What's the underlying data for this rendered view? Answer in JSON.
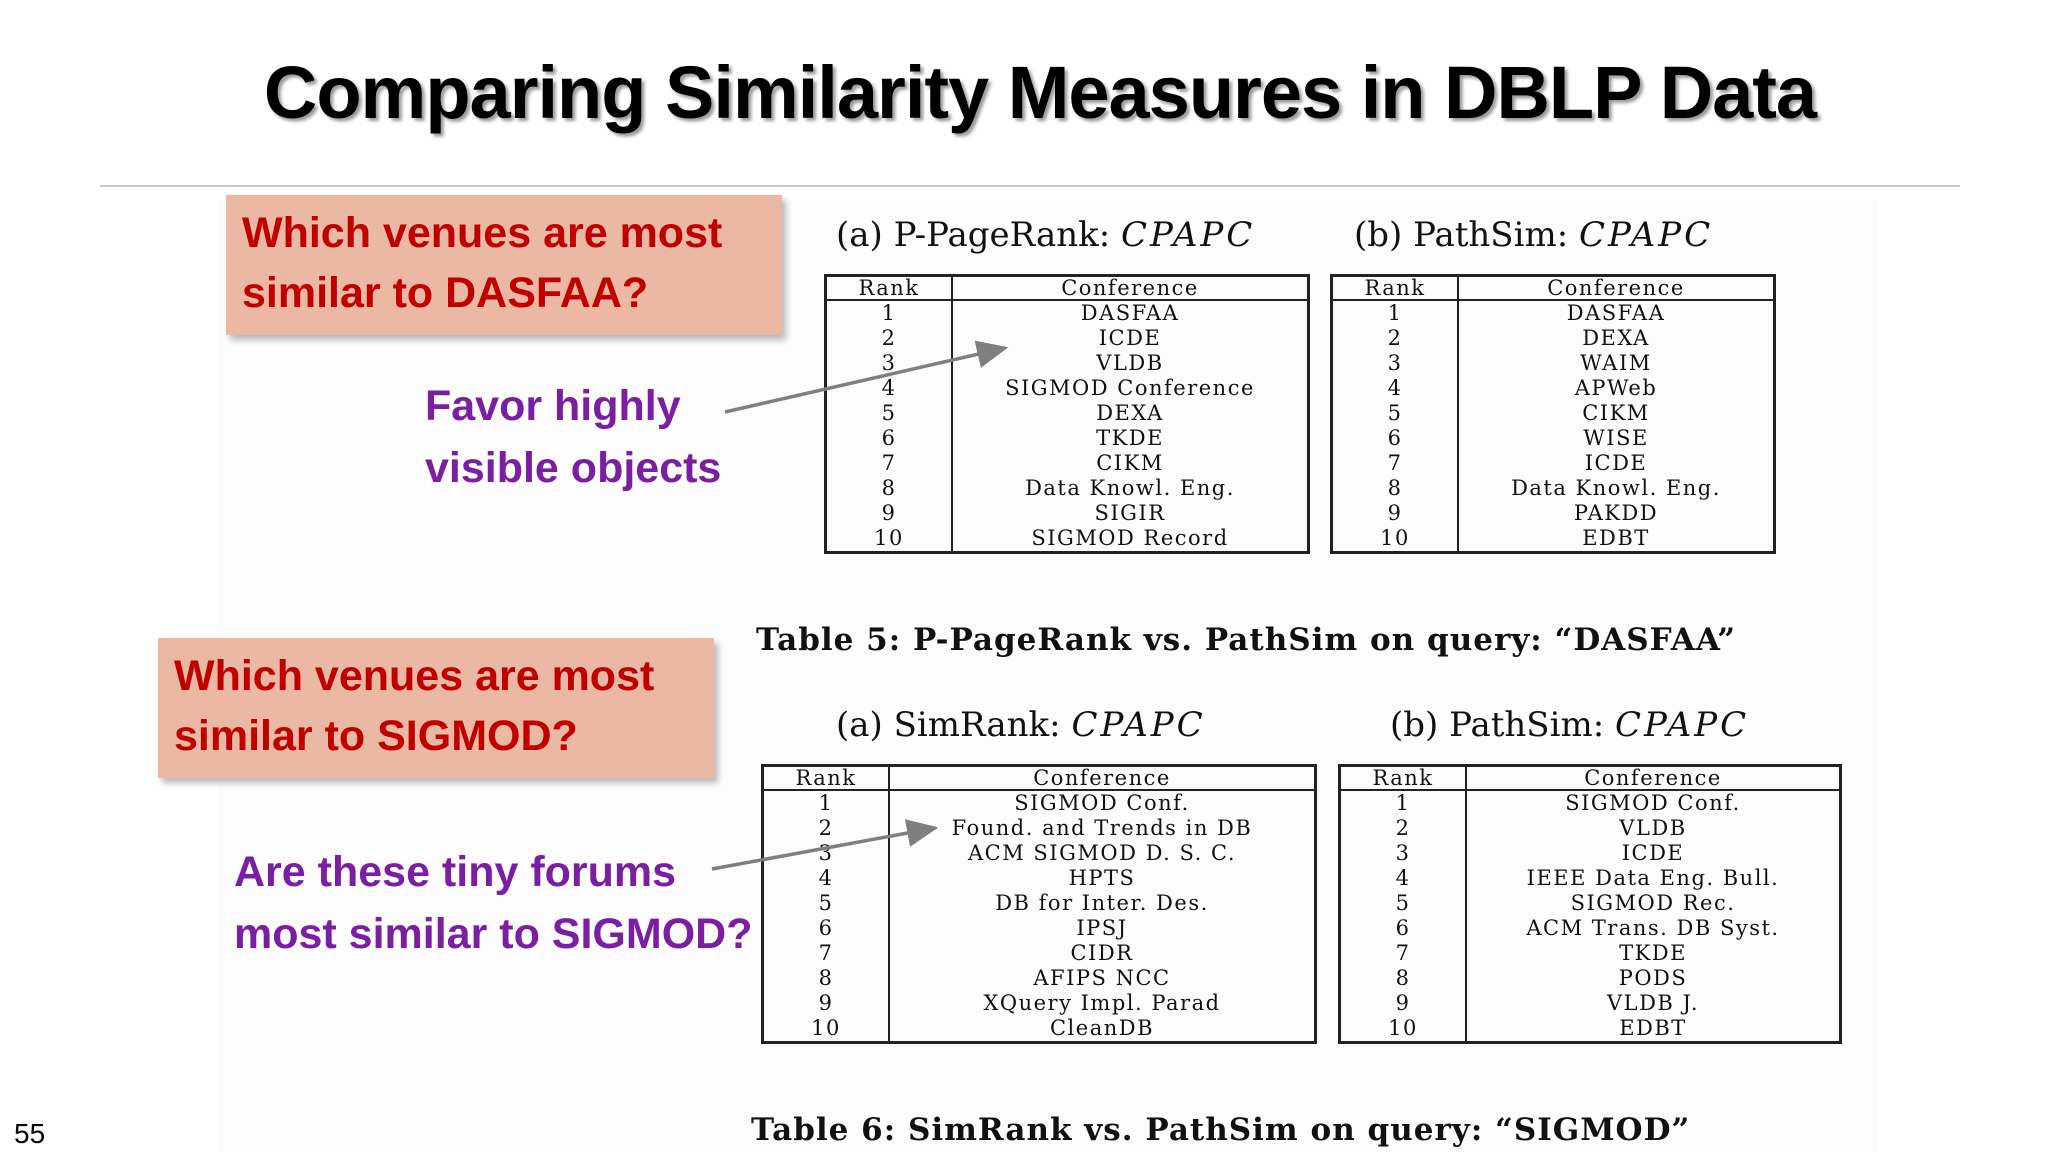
{
  "slide": {
    "title": "Comparing Similarity Measures in DBLP Data",
    "number": "55"
  },
  "callouts": [
    {
      "lines": [
        "Which venues are most",
        "similar to DASFAA?"
      ]
    },
    {
      "lines": [
        "Which venues are most",
        "similar to SIGMOD?"
      ]
    }
  ],
  "notes": [
    {
      "lines": [
        "Favor highly",
        "visible objects"
      ]
    },
    {
      "lines": [
        "Are these tiny forums",
        "most similar to SIGMOD?"
      ]
    }
  ],
  "table5": {
    "caption": "Table 5:  P-PageRank vs. PathSim on query:  “DASFAA”",
    "sub_a": {
      "prefix": "(a) P-PageRank: ",
      "path": "CPAPC"
    },
    "sub_b": {
      "prefix": "(b) PathSim: ",
      "path": "CPAPC"
    },
    "headers": [
      "Rank",
      "Conference"
    ],
    "a_rows": [
      "DASFAA",
      "ICDE",
      "VLDB",
      "SIGMOD Conference",
      "DEXA",
      "TKDE",
      "CIKM",
      "Data Knowl. Eng.",
      "SIGIR",
      "SIGMOD Record"
    ],
    "b_rows": [
      "DASFAA",
      "DEXA",
      "WAIM",
      "APWeb",
      "CIKM",
      "WISE",
      "ICDE",
      "Data Knowl. Eng.",
      "PAKDD",
      "EDBT"
    ]
  },
  "table6": {
    "caption": "Table 6:  SimRank vs. PathSim on query:  “SIGMOD”",
    "sub_a": {
      "prefix": "(a) SimRank: ",
      "path": "CPAPC"
    },
    "sub_b": {
      "prefix": "(b) PathSim: ",
      "path": "CPAPC"
    },
    "headers": [
      "Rank",
      "Conference"
    ],
    "a_rows": [
      "SIGMOD Conf.",
      "Found. and Trends in DB",
      "ACM SIGMOD D. S. C.",
      "HPTS",
      "DB for Inter. Des.",
      "IPSJ",
      "CIDR",
      "AFIPS NCC",
      "XQuery Impl. Parad",
      "CleanDB"
    ],
    "b_rows": [
      "SIGMOD Conf.",
      "VLDB",
      "ICDE",
      "IEEE Data Eng. Bull.",
      "SIGMOD Rec.",
      "ACM Trans. DB Syst.",
      "TKDE",
      "PODS",
      "VLDB J.",
      "EDBT"
    ]
  },
  "ranks": [
    "1",
    "2",
    "3",
    "4",
    "5",
    "6",
    "7",
    "8",
    "9",
    "10"
  ],
  "colors": {
    "callout_bg": "#ebb8a3",
    "callout_text": "#c00000",
    "note_text": "#7b1fa2",
    "arrow": "#7f7f7f"
  }
}
